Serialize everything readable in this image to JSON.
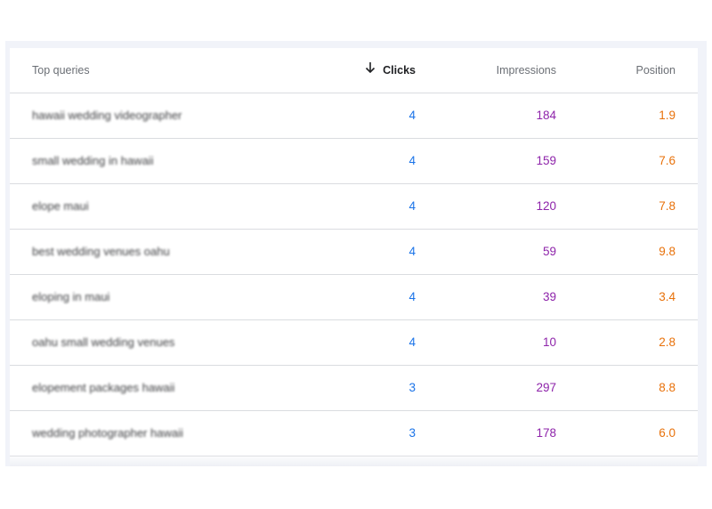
{
  "colors": {
    "clicks": "#1a73e8",
    "impressions": "#8e24aa",
    "position": "#e8710a"
  },
  "table": {
    "headers": {
      "query": "Top queries",
      "clicks": "Clicks",
      "impressions": "Impressions",
      "position": "Position"
    },
    "sort_icon": "arrow-downward-icon",
    "rows": [
      {
        "query": "hawaii wedding videographer",
        "clicks": "4",
        "impressions": "184",
        "position": "1.9"
      },
      {
        "query": "small wedding in hawaii",
        "clicks": "4",
        "impressions": "159",
        "position": "7.6"
      },
      {
        "query": "elope maui",
        "clicks": "4",
        "impressions": "120",
        "position": "7.8"
      },
      {
        "query": "best wedding venues oahu",
        "clicks": "4",
        "impressions": "59",
        "position": "9.8"
      },
      {
        "query": "eloping in maui",
        "clicks": "4",
        "impressions": "39",
        "position": "3.4"
      },
      {
        "query": "oahu small wedding venues",
        "clicks": "4",
        "impressions": "10",
        "position": "2.8"
      },
      {
        "query": "elopement packages hawaii",
        "clicks": "3",
        "impressions": "297",
        "position": "8.8"
      },
      {
        "query": "wedding photographer hawaii",
        "clicks": "3",
        "impressions": "178",
        "position": "6.0"
      }
    ]
  }
}
